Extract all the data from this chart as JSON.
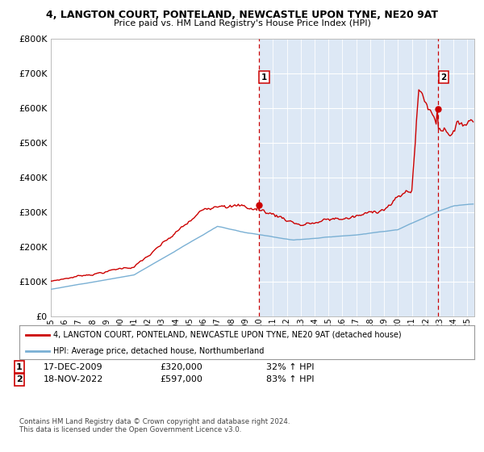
{
  "title1": "4, LANGTON COURT, PONTELAND, NEWCASTLE UPON TYNE, NE20 9AT",
  "title2": "Price paid vs. HM Land Registry's House Price Index (HPI)",
  "red_label": "4, LANGTON COURT, PONTELAND, NEWCASTLE UPON TYNE, NE20 9AT (detached house)",
  "blue_label": "HPI: Average price, detached house, Northumberland",
  "annotation1_date": "17-DEC-2009",
  "annotation1_price": "£320,000",
  "annotation1_hpi": "32% ↑ HPI",
  "annotation2_date": "18-NOV-2022",
  "annotation2_price": "£597,000",
  "annotation2_hpi": "83% ↑ HPI",
  "vline1_x": 2009.96,
  "vline2_x": 2022.88,
  "marker1_x": 2009.96,
  "marker1_y": 320000,
  "marker2_x": 2022.88,
  "marker2_y": 597000,
  "ylim": [
    0,
    800000
  ],
  "xlim_start": 1995.0,
  "xlim_end": 2025.5,
  "copyright": "Contains HM Land Registry data © Crown copyright and database right 2024.\nThis data is licensed under the Open Government Licence v3.0.",
  "background_color": "#ffffff",
  "plot_bg_color": "#dde8f5",
  "grid_color": "#ffffff",
  "red_color": "#cc0000",
  "blue_color": "#7ab0d4",
  "shade_start": 2009.96,
  "shade_end": 2025.5
}
